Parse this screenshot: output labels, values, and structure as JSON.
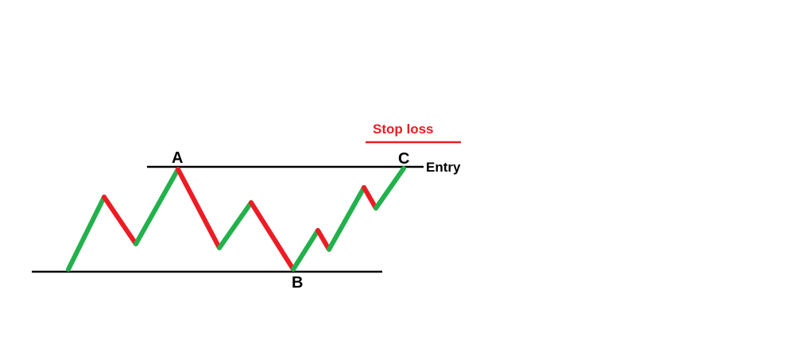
{
  "labels": {
    "point_a": "A",
    "point_b": "B",
    "point_c": "C",
    "entry": "Entry",
    "stop_loss": "Stop loss"
  },
  "colors": {
    "up_leg": "#22b14c",
    "down_leg": "#ed1c24",
    "level_line": "#000000",
    "stop_loss": "#ed1c24",
    "background": "#ffffff"
  }
}
